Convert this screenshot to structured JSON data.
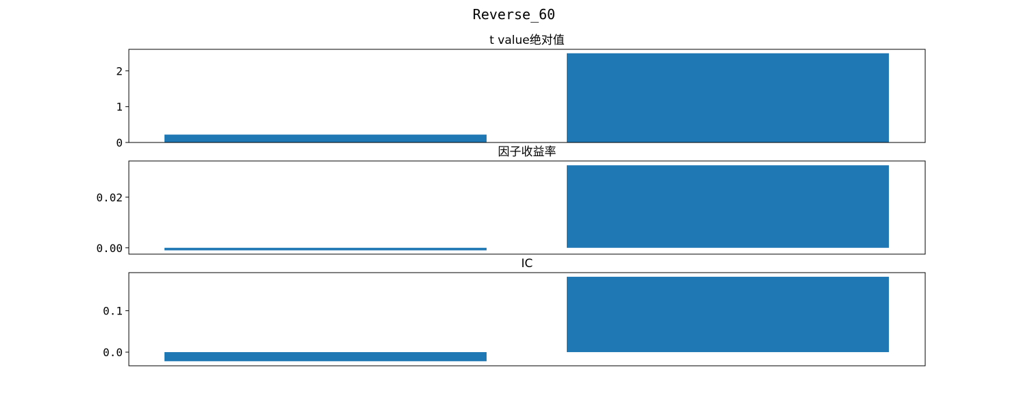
{
  "chart_data": {
    "type": "bar",
    "title": "Reverse_60",
    "subplots": [
      {
        "title": "t value绝对值",
        "categories": [
          "",
          ""
        ],
        "values": [
          0.22,
          2.49
        ],
        "ylim": [
          0,
          2.6
        ],
        "yticks": [
          0,
          1,
          2
        ],
        "ytick_labels": [
          "0",
          "1",
          "2"
        ],
        "color": "#1f77b4"
      },
      {
        "title": "因子收益率",
        "categories": [
          "",
          ""
        ],
        "values": [
          -0.001,
          0.0326
        ],
        "ylim": [
          -0.0025,
          0.0343
        ],
        "yticks": [
          0.0,
          0.02
        ],
        "ytick_labels": [
          "0.00",
          "0.02"
        ],
        "color": "#1f77b4"
      },
      {
        "title": "IC",
        "categories": [
          "",
          ""
        ],
        "values": [
          -0.022,
          0.182
        ],
        "ylim": [
          -0.033,
          0.192
        ],
        "yticks": [
          0.0,
          0.1
        ],
        "ytick_labels": [
          "0.0",
          "0.1"
        ],
        "color": "#1f77b4"
      }
    ],
    "grid": false,
    "legend": "none"
  }
}
